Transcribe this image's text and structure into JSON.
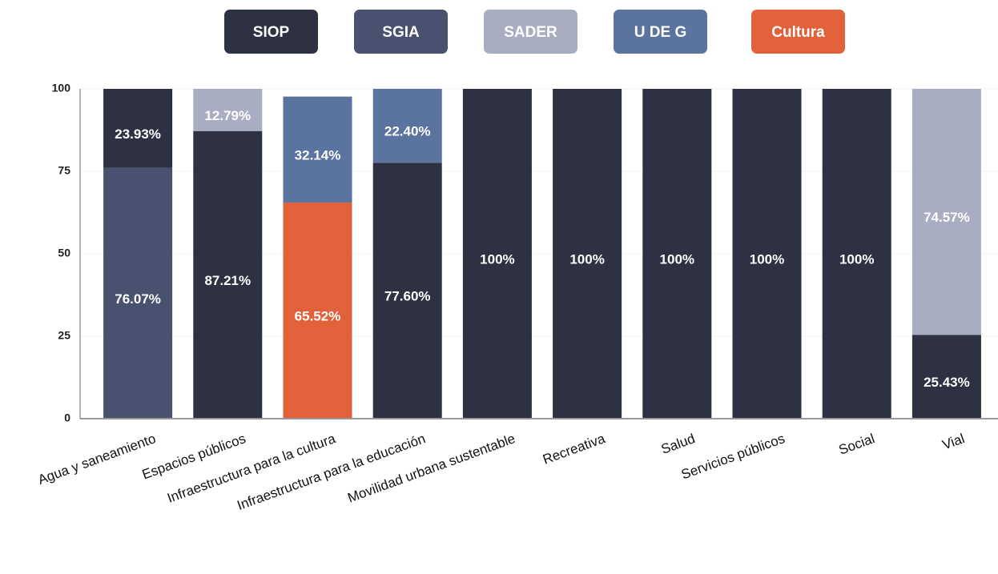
{
  "chart_data": {
    "type": "stacked_bar",
    "categories": [
      "Agua y saneamiento",
      "Espacios públicos",
      "Infraestructura para la cultura",
      "Infraestructura para la educación",
      "Movilidad urbana sustentable",
      "Recreativa",
      "Salud",
      "Servicios públicos",
      "Social",
      "Vial"
    ],
    "series": [
      {
        "name": "SIOP",
        "color": "#2d3142",
        "values": [
          23.93,
          87.21,
          null,
          77.6,
          100,
          100,
          100,
          100,
          100,
          25.43
        ],
        "value_labels": [
          "23.93%",
          "87.21%",
          null,
          "77.60%",
          "100%",
          "100%",
          "100%",
          "100%",
          "100%",
          "25.43%"
        ]
      },
      {
        "name": "SGIA",
        "color": "#48526e",
        "values": [
          76.07,
          null,
          null,
          null,
          null,
          null,
          null,
          null,
          null,
          null
        ],
        "value_labels": [
          "76.07%",
          null,
          null,
          null,
          null,
          null,
          null,
          null,
          null,
          null
        ]
      },
      {
        "name": "SADER",
        "color": "#a9adc1",
        "values": [
          null,
          12.79,
          null,
          null,
          null,
          null,
          null,
          null,
          null,
          74.57
        ],
        "value_labels": [
          null,
          "12.79%",
          null,
          null,
          null,
          null,
          null,
          null,
          null,
          "74.57%"
        ]
      },
      {
        "name": "U DE G",
        "color": "#5b739f",
        "values": [
          null,
          null,
          32.14,
          22.4,
          null,
          null,
          null,
          null,
          null,
          null
        ],
        "value_labels": [
          null,
          null,
          "32.14%",
          "22.40%",
          null,
          null,
          null,
          null,
          null,
          null
        ]
      },
      {
        "name": "Cultura",
        "color": "#e0613a",
        "values": [
          null,
          null,
          65.52,
          null,
          null,
          null,
          null,
          null,
          null,
          null
        ],
        "value_labels": [
          null,
          null,
          "65.52%",
          null,
          null,
          null,
          null,
          null,
          null,
          null
        ]
      }
    ],
    "stack_order": [
      1,
      4,
      0,
      2,
      3
    ],
    "ylim": [
      0,
      100
    ],
    "yticks": [
      0,
      25,
      50,
      75,
      100
    ],
    "grid": true,
    "legend": "top"
  }
}
